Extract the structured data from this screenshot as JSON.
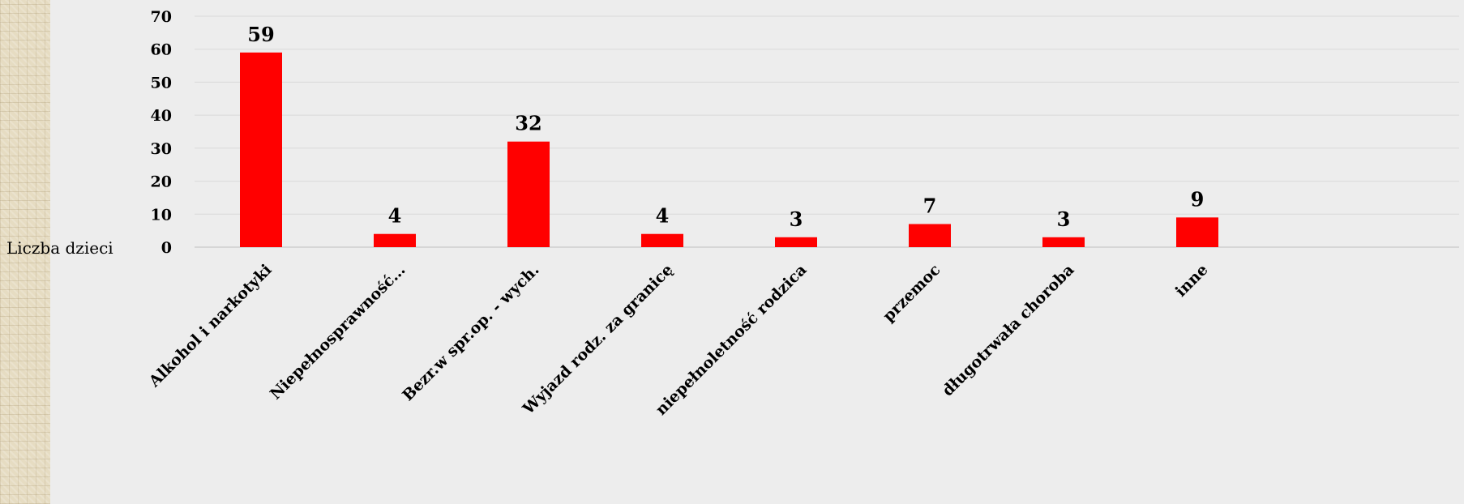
{
  "chart_data": {
    "type": "bar",
    "categories": [
      "Alkohol i narkotyki",
      "Niepełnosprawność…",
      "Bezr.w spr.op. - wych.",
      "Wyjazd rodz. za granicę",
      "niepełnoletność rodzica",
      "przemoc",
      "długotrwała choroba",
      "inne"
    ],
    "series": [
      {
        "name": "Liczba dzieci",
        "values": [
          59,
          4,
          32,
          4,
          3,
          7,
          3,
          9
        ]
      }
    ],
    "ylim": [
      0,
      70
    ],
    "yticks": [
      0,
      10,
      20,
      30,
      40,
      50,
      60,
      70
    ],
    "grid": true,
    "bar_color": "#ff0000",
    "background_color": "#ededed",
    "grid_color": "#d9d9d9"
  }
}
